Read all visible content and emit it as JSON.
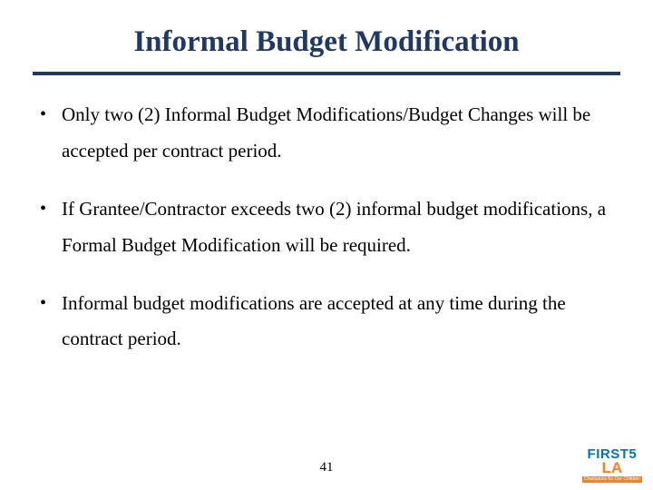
{
  "title": "Informal Budget Modification",
  "bullets": [
    "Only two (2) Informal Budget Modifications/Budget Changes will be accepted per contract period.",
    "If Grantee/Contractor exceeds two (2) informal budget modifications, a Formal Budget Modification will be required.",
    "Informal budget modifications are accepted at any time during the contract period."
  ],
  "page_number": "41",
  "logo": {
    "line1a": "FIRST",
    "line1b": "5",
    "line2": "LA",
    "tagline": "Champions for Our Children"
  },
  "colors": {
    "title_color": "#1f3864",
    "rule_color": "#1f3864",
    "text_color": "#000000",
    "logo_blue": "#0072bc",
    "logo_orange": "#f58220",
    "background": "#ffffff"
  },
  "typography": {
    "title_fontsize": 33,
    "bullet_fontsize": 21,
    "page_number_fontsize": 15,
    "font_family": "Times New Roman"
  }
}
